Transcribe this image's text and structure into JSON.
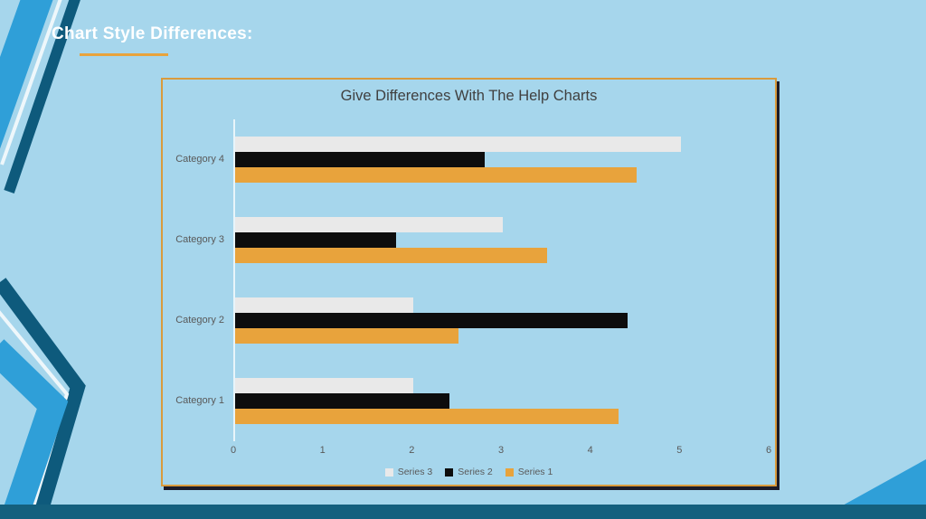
{
  "slide": {
    "title": "Chart Style Differences:",
    "background_color": "#a6d6ec",
    "accent_underline_color": "#e8a33c",
    "frame_border_color": "#d99b3c",
    "decoration_colors": {
      "bright_blue": "#2f9fd8",
      "dark_blue": "#0e5a7c",
      "white_line": "#eef7fb",
      "bottom_bar": "#14607e"
    }
  },
  "chart_data": {
    "type": "bar",
    "orientation": "horizontal",
    "title": "Give Differences With The Help Charts",
    "categories": [
      "Category 1",
      "Category 2",
      "Category 3",
      "Category 4"
    ],
    "series": [
      {
        "name": "Series 1",
        "color": "#e8a33c",
        "values": [
          4.3,
          2.5,
          3.5,
          4.5
        ]
      },
      {
        "name": "Series 2",
        "color": "#0d0d0d",
        "values": [
          2.4,
          4.4,
          1.8,
          2.8
        ]
      },
      {
        "name": "Series 3",
        "color": "#e9e9e9",
        "values": [
          2,
          2,
          3,
          5
        ]
      }
    ],
    "x_axis": {
      "min": 0,
      "max": 6,
      "ticks": [
        0,
        1,
        2,
        3,
        4,
        5,
        6
      ]
    },
    "legend": {
      "position": "bottom",
      "order": [
        "Series 3",
        "Series 2",
        "Series 1"
      ]
    },
    "grid": false,
    "title_color": "#404040",
    "label_color": "#595959"
  }
}
